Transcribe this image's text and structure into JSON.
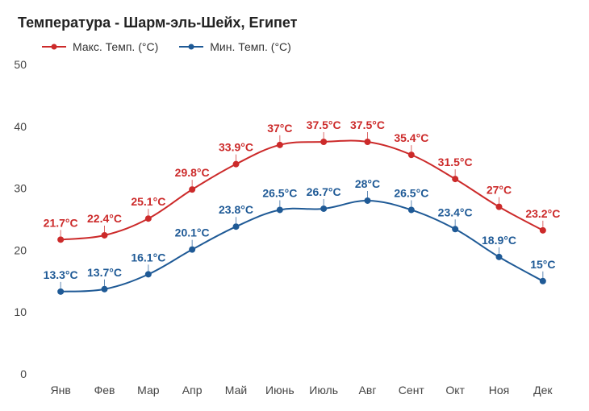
{
  "chart_data": {
    "type": "line",
    "title": "Температура - Шарм-эль-Шейх, Египет",
    "categories": [
      "Янв",
      "Фев",
      "Мар",
      "Апр",
      "Май",
      "Июнь",
      "Июль",
      "Авг",
      "Сент",
      "Окт",
      "Ноя",
      "Дек"
    ],
    "series": [
      {
        "name": "Макс. Темп. (°C)",
        "color": "#cc2a2a",
        "values": [
          21.7,
          22.4,
          25.1,
          29.8,
          33.9,
          37,
          37.5,
          37.5,
          35.4,
          31.5,
          27,
          23.2
        ],
        "labels": [
          "21.7°C",
          "22.4°C",
          "25.1°C",
          "29.8°C",
          "33.9°C",
          "37°C",
          "37.5°C",
          "37.5°C",
          "35.4°C",
          "31.5°C",
          "27°C",
          "23.2°C"
        ]
      },
      {
        "name": "Мин. Темп. (°C)",
        "color": "#1f5a96",
        "values": [
          13.3,
          13.7,
          16.1,
          20.1,
          23.8,
          26.5,
          26.7,
          28,
          26.5,
          23.4,
          18.9,
          15
        ],
        "labels": [
          "13.3°C",
          "13.7°C",
          "16.1°C",
          "20.1°C",
          "23.8°C",
          "26.5°C",
          "26.7°C",
          "28°C",
          "26.5°C",
          "23.4°C",
          "18.9°C",
          "15°C"
        ]
      }
    ],
    "ylim": [
      0,
      50
    ],
    "yticks": [
      "0",
      "10",
      "20",
      "30",
      "40",
      "50"
    ],
    "grid": false,
    "legend_position": "top-left"
  }
}
